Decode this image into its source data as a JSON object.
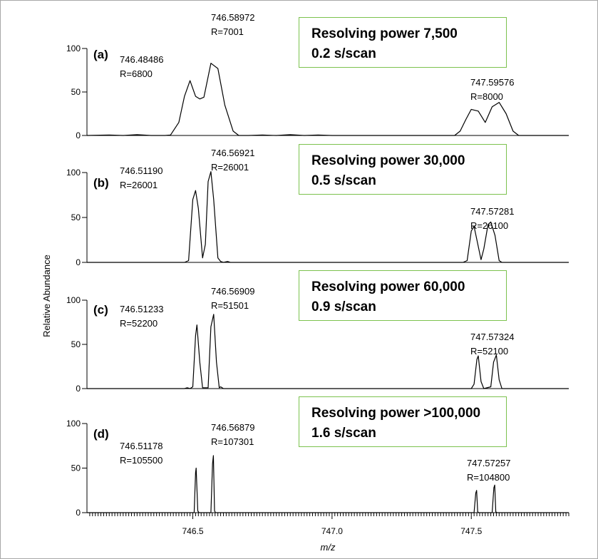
{
  "figure": {
    "ylabel": "Relative Abundance",
    "xlabel": "m/z",
    "colors": {
      "border": "#a8a8a8",
      "label_box_border": "#7cc24e",
      "trace": "#000000"
    }
  },
  "chart_data": {
    "type": "line",
    "xlabel": "m/z",
    "ylabel": "Relative Abundance",
    "xlim": [
      746.12,
      747.85
    ],
    "x_ticks": [
      "746.5",
      "747.0",
      "747.5"
    ],
    "x_tick_values": [
      746.5,
      747.0,
      747.5
    ],
    "panels": [
      {
        "label": "(a)",
        "ylim": [
          0,
          100
        ],
        "y_ticks": [
          "0",
          "50",
          "100"
        ],
        "box_line1": "Resolving power 7,500",
        "box_line2": "0.2 s/scan",
        "peaks": [
          {
            "mz": "746.48486",
            "R": "R=6800"
          },
          {
            "mz": "746.58972",
            "R": "R=7001"
          },
          {
            "mz": "747.59576",
            "R": "R=8000"
          }
        ],
        "points": [
          [
            746.12,
            0
          ],
          [
            746.2,
            0.5
          ],
          [
            746.25,
            0
          ],
          [
            746.3,
            1
          ],
          [
            746.35,
            0
          ],
          [
            746.4,
            0
          ],
          [
            746.42,
            0.5
          ],
          [
            746.45,
            15
          ],
          [
            746.47,
            45
          ],
          [
            746.49,
            63
          ],
          [
            746.51,
            45
          ],
          [
            746.525,
            42
          ],
          [
            746.54,
            44
          ],
          [
            746.565,
            83
          ],
          [
            746.59,
            77
          ],
          [
            746.615,
            35
          ],
          [
            746.645,
            5
          ],
          [
            746.665,
            0
          ],
          [
            746.7,
            0
          ],
          [
            746.75,
            0.5
          ],
          [
            746.8,
            0
          ],
          [
            746.85,
            1
          ],
          [
            746.9,
            0
          ],
          [
            746.95,
            0.5
          ],
          [
            747.0,
            0
          ],
          [
            747.1,
            0
          ],
          [
            747.2,
            0
          ],
          [
            747.35,
            0
          ],
          [
            747.44,
            0
          ],
          [
            747.46,
            5
          ],
          [
            747.48,
            18
          ],
          [
            747.5,
            30
          ],
          [
            747.525,
            28
          ],
          [
            747.55,
            15
          ],
          [
            747.575,
            33
          ],
          [
            747.6,
            38
          ],
          [
            747.625,
            25
          ],
          [
            747.65,
            5
          ],
          [
            747.67,
            0
          ],
          [
            747.85,
            0
          ]
        ]
      },
      {
        "label": "(b)",
        "ylim": [
          0,
          100
        ],
        "y_ticks": [
          "0",
          "50",
          "100"
        ],
        "box_line1": "Resolving power 30,000",
        "box_line2": "0.5 s/scan",
        "peaks": [
          {
            "mz": "746.51190",
            "R": "R=26001"
          },
          {
            "mz": "746.56921",
            "R": "R=26001"
          },
          {
            "mz": "747.57281",
            "R": "R=26100"
          }
        ],
        "points": [
          [
            746.12,
            0
          ],
          [
            746.47,
            0
          ],
          [
            746.485,
            2
          ],
          [
            746.5,
            70
          ],
          [
            746.51,
            80
          ],
          [
            746.52,
            60
          ],
          [
            746.535,
            5
          ],
          [
            746.545,
            20
          ],
          [
            746.555,
            90
          ],
          [
            746.565,
            101
          ],
          [
            746.575,
            70
          ],
          [
            746.59,
            5
          ],
          [
            746.6,
            1
          ],
          [
            746.61,
            0
          ],
          [
            746.625,
            1
          ],
          [
            746.635,
            0
          ],
          [
            747.47,
            0
          ],
          [
            747.485,
            2
          ],
          [
            747.5,
            35
          ],
          [
            747.51,
            40
          ],
          [
            747.52,
            25
          ],
          [
            747.535,
            3
          ],
          [
            747.545,
            15
          ],
          [
            747.56,
            42
          ],
          [
            747.57,
            45
          ],
          [
            747.585,
            30
          ],
          [
            747.6,
            2
          ],
          [
            747.61,
            0
          ],
          [
            747.85,
            0
          ]
        ]
      },
      {
        "label": "(c)",
        "ylim": [
          0,
          100
        ],
        "y_ticks": [
          "0",
          "50",
          "100"
        ],
        "box_line1": "Resolving power 60,000",
        "box_line2": "0.9 s/scan",
        "peaks": [
          {
            "mz": "746.51233",
            "R": "R=52200"
          },
          {
            "mz": "746.56909",
            "R": "R=51501"
          },
          {
            "mz": "747.57324",
            "R": "R=52100"
          }
        ],
        "points": [
          [
            746.12,
            0
          ],
          [
            746.47,
            0
          ],
          [
            746.48,
            1
          ],
          [
            746.49,
            0
          ],
          [
            746.5,
            2
          ],
          [
            746.51,
            60
          ],
          [
            746.515,
            72
          ],
          [
            746.525,
            30
          ],
          [
            746.535,
            1
          ],
          [
            746.555,
            1
          ],
          [
            746.565,
            70
          ],
          [
            746.575,
            84
          ],
          [
            746.585,
            30
          ],
          [
            746.595,
            1
          ],
          [
            746.6,
            2
          ],
          [
            746.61,
            0
          ],
          [
            747.5,
            0
          ],
          [
            747.51,
            5
          ],
          [
            747.52,
            33
          ],
          [
            747.525,
            37
          ],
          [
            747.535,
            8
          ],
          [
            747.545,
            0
          ],
          [
            747.57,
            2
          ],
          [
            747.58,
            30
          ],
          [
            747.59,
            38
          ],
          [
            747.6,
            10
          ],
          [
            747.61,
            0
          ],
          [
            747.85,
            0
          ]
        ]
      },
      {
        "label": "(d)",
        "ylim": [
          0,
          100
        ],
        "y_ticks": [
          "0",
          "50",
          "100"
        ],
        "box_line1": "Resolving power >100,000",
        "box_line2": "1.6 s/scan",
        "peaks": [
          {
            "mz": "746.51178",
            "R": "R=105500"
          },
          {
            "mz": "746.56879",
            "R": "R=107301"
          },
          {
            "mz": "747.57257",
            "R": "R=104800"
          }
        ],
        "points": [
          [
            746.12,
            0
          ],
          [
            746.505,
            0
          ],
          [
            746.51,
            45
          ],
          [
            746.512,
            50
          ],
          [
            746.518,
            2
          ],
          [
            746.522,
            0
          ],
          [
            746.565,
            0
          ],
          [
            746.571,
            55
          ],
          [
            746.574,
            64
          ],
          [
            746.578,
            2
          ],
          [
            746.582,
            0
          ],
          [
            747.51,
            0
          ],
          [
            747.516,
            22
          ],
          [
            747.519,
            25
          ],
          [
            747.523,
            1
          ],
          [
            747.527,
            0
          ],
          [
            747.575,
            0
          ],
          [
            747.581,
            28
          ],
          [
            747.584,
            31
          ],
          [
            747.588,
            1
          ],
          [
            747.592,
            0
          ],
          [
            747.85,
            0
          ]
        ]
      }
    ]
  }
}
